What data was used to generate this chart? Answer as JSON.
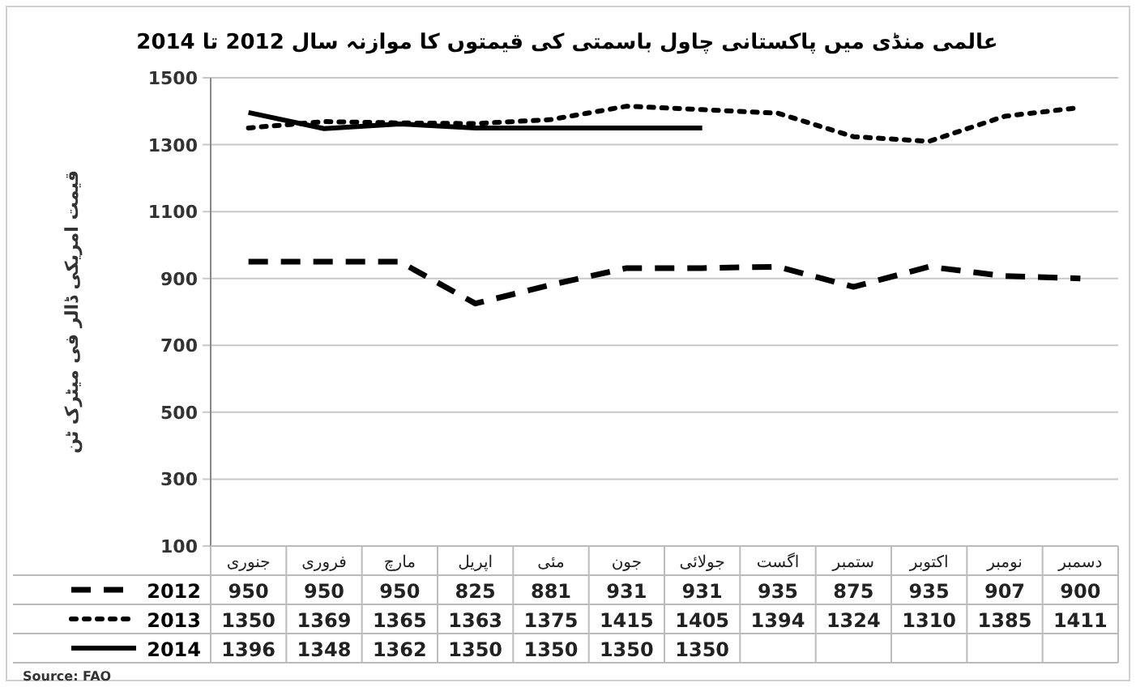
{
  "chart_data": {
    "type": "line",
    "title": "عالمی منڈی میں پاکستانی چاول باسمتی کی قیمتوں کا موازنہ سال 2012 تا 2014",
    "ylabel": "قیمت امریکی ڈالر فی میٹرک ٹن",
    "categories": [
      "جنوری",
      "فروری",
      "مارچ",
      "اپریل",
      "مئی",
      "جون",
      "جولائی",
      "اگست",
      "ستمبر",
      "اکتوبر",
      "نومبر",
      "دسمبر"
    ],
    "series": [
      {
        "name": "2012",
        "color": "#000000",
        "line_style": "dashed",
        "values": [
          950,
          950,
          950,
          825,
          881,
          931,
          931,
          935,
          875,
          935,
          907,
          900
        ]
      },
      {
        "name": "2013",
        "color": "#000000",
        "line_style": "dotted",
        "values": [
          1350,
          1369,
          1365,
          1363,
          1375,
          1415,
          1405,
          1394,
          1324,
          1310,
          1385,
          1411
        ]
      },
      {
        "name": "2014",
        "color": "#000000",
        "line_style": "solid",
        "values": [
          1396,
          1348,
          1362,
          1350,
          1350,
          1350,
          1350,
          null,
          null,
          null,
          null,
          null
        ]
      }
    ],
    "ylim": [
      100,
      1500
    ],
    "yticks": [
      100,
      300,
      500,
      700,
      900,
      1100,
      1300,
      1500
    ],
    "grid": "y",
    "legend": "bottom",
    "data_labels": true,
    "annotations": [
      "Source: FAO"
    ]
  }
}
